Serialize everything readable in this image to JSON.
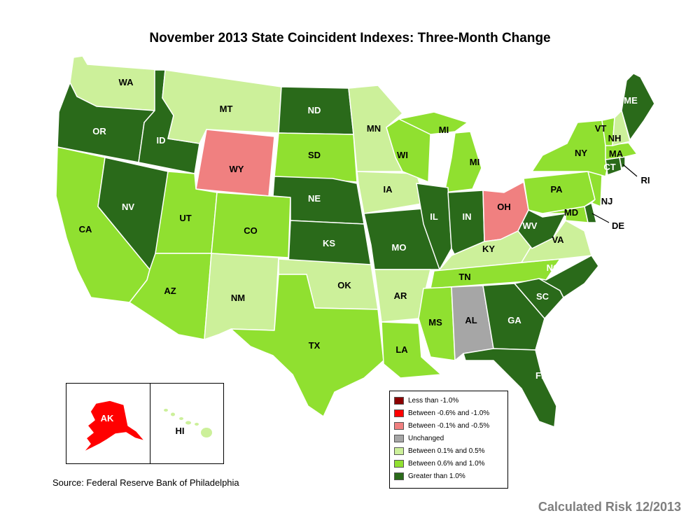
{
  "title": "November 2013 State Coincident Indexes: Three-Month Change",
  "colors": {
    "lt_neg1": "#8b0000",
    "neg06_10": "#ff0000",
    "neg01_05": "#f08080",
    "unchanged": "#a6a6a6",
    "pos01_05": "#ccf09a",
    "pos06_10": "#90e030",
    "gt_1": "#2a6a1a"
  },
  "legend": [
    {
      "key": "lt_neg1",
      "label": "Less than -1.0%"
    },
    {
      "key": "neg06_10",
      "label": "Between -0.6% and -1.0%"
    },
    {
      "key": "neg01_05",
      "label": "Between -0.1% and -0.5%"
    },
    {
      "key": "unchanged",
      "label": "Unchanged"
    },
    {
      "key": "pos01_05",
      "label": "Between 0.1% and 0.5%"
    },
    {
      "key": "pos06_10",
      "label": "Between 0.6% and 1.0%"
    },
    {
      "key": "gt_1",
      "label": "Greater than 1.0%"
    }
  ],
  "states": [
    {
      "id": "WA",
      "label": "WA",
      "category": "pos01_05"
    },
    {
      "id": "OR",
      "label": "OR",
      "category": "gt_1"
    },
    {
      "id": "CA",
      "label": "CA",
      "category": "pos06_10"
    },
    {
      "id": "ID",
      "label": "ID",
      "category": "gt_1"
    },
    {
      "id": "NV",
      "label": "NV",
      "category": "gt_1"
    },
    {
      "id": "MT",
      "label": "MT",
      "category": "pos01_05"
    },
    {
      "id": "WY",
      "label": "WY",
      "category": "neg01_05"
    },
    {
      "id": "UT",
      "label": "UT",
      "category": "pos06_10"
    },
    {
      "id": "AZ",
      "label": "AZ",
      "category": "pos06_10"
    },
    {
      "id": "CO",
      "label": "CO",
      "category": "pos06_10"
    },
    {
      "id": "NM",
      "label": "NM",
      "category": "pos01_05"
    },
    {
      "id": "ND",
      "label": "ND",
      "category": "gt_1"
    },
    {
      "id": "SD",
      "label": "SD",
      "category": "pos06_10"
    },
    {
      "id": "NE",
      "label": "NE",
      "category": "gt_1"
    },
    {
      "id": "KS",
      "label": "KS",
      "category": "gt_1"
    },
    {
      "id": "OK",
      "label": "OK",
      "category": "pos01_05"
    },
    {
      "id": "TX",
      "label": "TX",
      "category": "pos06_10"
    },
    {
      "id": "MN",
      "label": "MN",
      "category": "pos01_05"
    },
    {
      "id": "IA",
      "label": "IA",
      "category": "pos01_05"
    },
    {
      "id": "MO",
      "label": "MO",
      "category": "gt_1"
    },
    {
      "id": "AR",
      "label": "AR",
      "category": "pos01_05"
    },
    {
      "id": "LA",
      "label": "LA",
      "category": "pos06_10"
    },
    {
      "id": "WI",
      "label": "WI",
      "category": "pos06_10"
    },
    {
      "id": "MI",
      "label": "MI",
      "category": "pos06_10"
    },
    {
      "id": "MI2",
      "label": "MI",
      "category": "pos06_10"
    },
    {
      "id": "IL",
      "label": "IL",
      "category": "gt_1"
    },
    {
      "id": "IN",
      "label": "IN",
      "category": "gt_1"
    },
    {
      "id": "OH",
      "label": "OH",
      "category": "neg01_05"
    },
    {
      "id": "KY",
      "label": "KY",
      "category": "pos01_05"
    },
    {
      "id": "TN",
      "label": "TN",
      "category": "pos06_10"
    },
    {
      "id": "MS",
      "label": "MS",
      "category": "pos06_10"
    },
    {
      "id": "AL",
      "label": "AL",
      "category": "unchanged"
    },
    {
      "id": "GA",
      "label": "GA",
      "category": "gt_1"
    },
    {
      "id": "FL",
      "label": "FL",
      "category": "gt_1"
    },
    {
      "id": "SC",
      "label": "SC",
      "category": "gt_1"
    },
    {
      "id": "NC",
      "label": "NC",
      "category": "gt_1"
    },
    {
      "id": "VA",
      "label": "VA",
      "category": "pos01_05"
    },
    {
      "id": "WV",
      "label": "WV",
      "category": "gt_1"
    },
    {
      "id": "MD",
      "label": "MD",
      "category": "pos06_10"
    },
    {
      "id": "DE",
      "label": "DE",
      "category": "gt_1"
    },
    {
      "id": "PA",
      "label": "PA",
      "category": "pos06_10"
    },
    {
      "id": "NJ",
      "label": "NJ",
      "category": "pos06_10"
    },
    {
      "id": "NY",
      "label": "NY",
      "category": "pos06_10"
    },
    {
      "id": "CT",
      "label": "CT",
      "category": "gt_1"
    },
    {
      "id": "RI",
      "label": "RI",
      "category": "gt_1"
    },
    {
      "id": "MA",
      "label": "MA",
      "category": "pos06_10"
    },
    {
      "id": "VT",
      "label": "VT",
      "category": "pos06_10"
    },
    {
      "id": "NH",
      "label": "NH",
      "category": "pos01_05"
    },
    {
      "id": "ME",
      "label": "ME",
      "category": "gt_1"
    },
    {
      "id": "AK",
      "label": "AK",
      "category": "neg06_10"
    },
    {
      "id": "HI",
      "label": "HI",
      "category": "pos01_05"
    }
  ],
  "source": "Source: Federal Reserve Bank of Philadelphia",
  "credit": "Calculated Risk 12/2013"
}
